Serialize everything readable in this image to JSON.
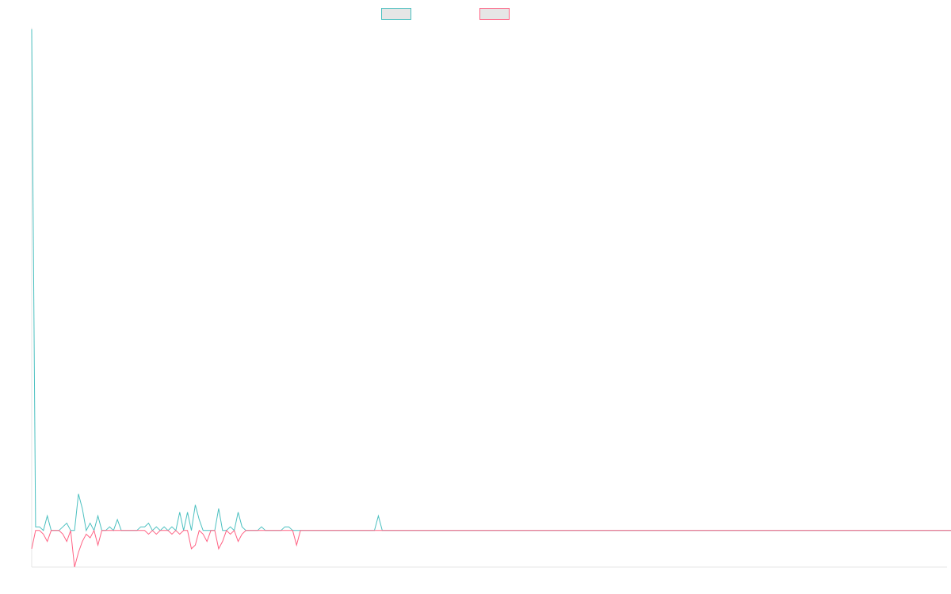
{
  "chart_data": {
    "type": "line",
    "title": "",
    "xlabel": "",
    "ylabel": "",
    "legend_position": "top-center",
    "grid": false,
    "xlim": [
      0,
      235
    ],
    "ylim": [
      -10,
      137
    ],
    "series": [
      {
        "name": "",
        "color": "#4bc0c0",
        "values": [
          137,
          1,
          1,
          0,
          4,
          0,
          0,
          0,
          1,
          2,
          0,
          0,
          10,
          6,
          0,
          2,
          0,
          4,
          0,
          0,
          1,
          0,
          3,
          0,
          0,
          0,
          0,
          0,
          1,
          1,
          2,
          0,
          1,
          0,
          1,
          0,
          1,
          0,
          5,
          0,
          5,
          0,
          7,
          3,
          0,
          0,
          0,
          0,
          6,
          0,
          0,
          1,
          0,
          5,
          1,
          0,
          0,
          0,
          0,
          1,
          0,
          0,
          0,
          0,
          0,
          1,
          1,
          0,
          0,
          0,
          0,
          0,
          0,
          0,
          0,
          0,
          0,
          0,
          0,
          0,
          0,
          0,
          0,
          0,
          0,
          0,
          0,
          0,
          0,
          4,
          0,
          0,
          0,
          0,
          0,
          0,
          0,
          0,
          0,
          0,
          0,
          0,
          0,
          0,
          0,
          0,
          0,
          0,
          0,
          0,
          0,
          0,
          0,
          0,
          0,
          0,
          0,
          0,
          0,
          0,
          0,
          0,
          0,
          0,
          0,
          0,
          0,
          0,
          0,
          0,
          0,
          0,
          0,
          0,
          0,
          0,
          0,
          0,
          0,
          0,
          0,
          0,
          0,
          0,
          0,
          0,
          0,
          0,
          0,
          0,
          0,
          0,
          0,
          0,
          0,
          0,
          0,
          0,
          0,
          0,
          0,
          0,
          0,
          0,
          0,
          0,
          0,
          0,
          0,
          0,
          0,
          0,
          0,
          0,
          0,
          0,
          0,
          0,
          0,
          0,
          0,
          0,
          0,
          0,
          0,
          0,
          0,
          0,
          0,
          0,
          0,
          0,
          0,
          0,
          0,
          0,
          0,
          0,
          0,
          0,
          0,
          0,
          0,
          0,
          0,
          0,
          0,
          0,
          0,
          0,
          0,
          0,
          0,
          0,
          0,
          0,
          0,
          0,
          0,
          0,
          0,
          0,
          0,
          0,
          0,
          0,
          0,
          0,
          0,
          0,
          0,
          0,
          0,
          0,
          0,
          0,
          0,
          0
        ]
      },
      {
        "name": "",
        "color": "#ff6384",
        "values": [
          -5,
          0,
          0,
          -1,
          -3,
          0,
          0,
          0,
          -1,
          -3,
          0,
          -10,
          -6,
          -3,
          -1,
          -2,
          0,
          -4,
          0,
          0,
          0,
          0,
          0,
          0,
          0,
          0,
          0,
          0,
          0,
          0,
          -1,
          0,
          -1,
          0,
          0,
          0,
          -1,
          0,
          -1,
          0,
          0,
          -5,
          -4,
          0,
          -1,
          -3,
          0,
          0,
          -5,
          -3,
          0,
          -1,
          0,
          -3,
          -1,
          0,
          0,
          0,
          0,
          0,
          0,
          0,
          0,
          0,
          0,
          0,
          0,
          0,
          -4,
          0,
          0,
          0,
          0,
          0,
          0,
          0,
          0,
          0,
          0,
          0,
          0,
          0,
          0,
          0,
          0,
          0,
          0,
          0,
          0,
          0,
          0,
          0,
          0,
          0,
          0,
          0,
          0,
          0,
          0,
          0,
          0,
          0,
          0,
          0,
          0,
          0,
          0,
          0,
          0,
          0,
          0,
          0,
          0,
          0,
          0,
          0,
          0,
          0,
          0,
          0,
          0,
          0,
          0,
          0,
          0,
          0,
          0,
          0,
          0,
          0,
          0,
          0,
          0,
          0,
          0,
          0,
          0,
          0,
          0,
          0,
          0,
          0,
          0,
          0,
          0,
          0,
          0,
          0,
          0,
          0,
          0,
          0,
          0,
          0,
          0,
          0,
          0,
          0,
          0,
          0,
          0,
          0,
          0,
          0,
          0,
          0,
          0,
          0,
          0,
          0,
          0,
          0,
          0,
          0,
          0,
          0,
          0,
          0,
          0,
          0,
          0,
          0,
          0,
          0,
          0,
          0,
          0,
          0,
          0,
          0,
          0,
          0,
          0,
          0,
          0,
          0,
          0,
          0,
          0,
          0,
          0,
          0,
          0,
          0,
          0,
          0,
          0,
          0,
          0,
          0,
          0,
          0,
          0,
          0,
          0,
          0,
          0,
          0,
          0,
          0,
          0,
          0,
          0,
          0,
          0,
          0,
          0,
          0,
          0,
          0,
          0,
          0,
          0,
          0,
          0,
          0,
          0,
          0,
          0
        ]
      }
    ]
  }
}
